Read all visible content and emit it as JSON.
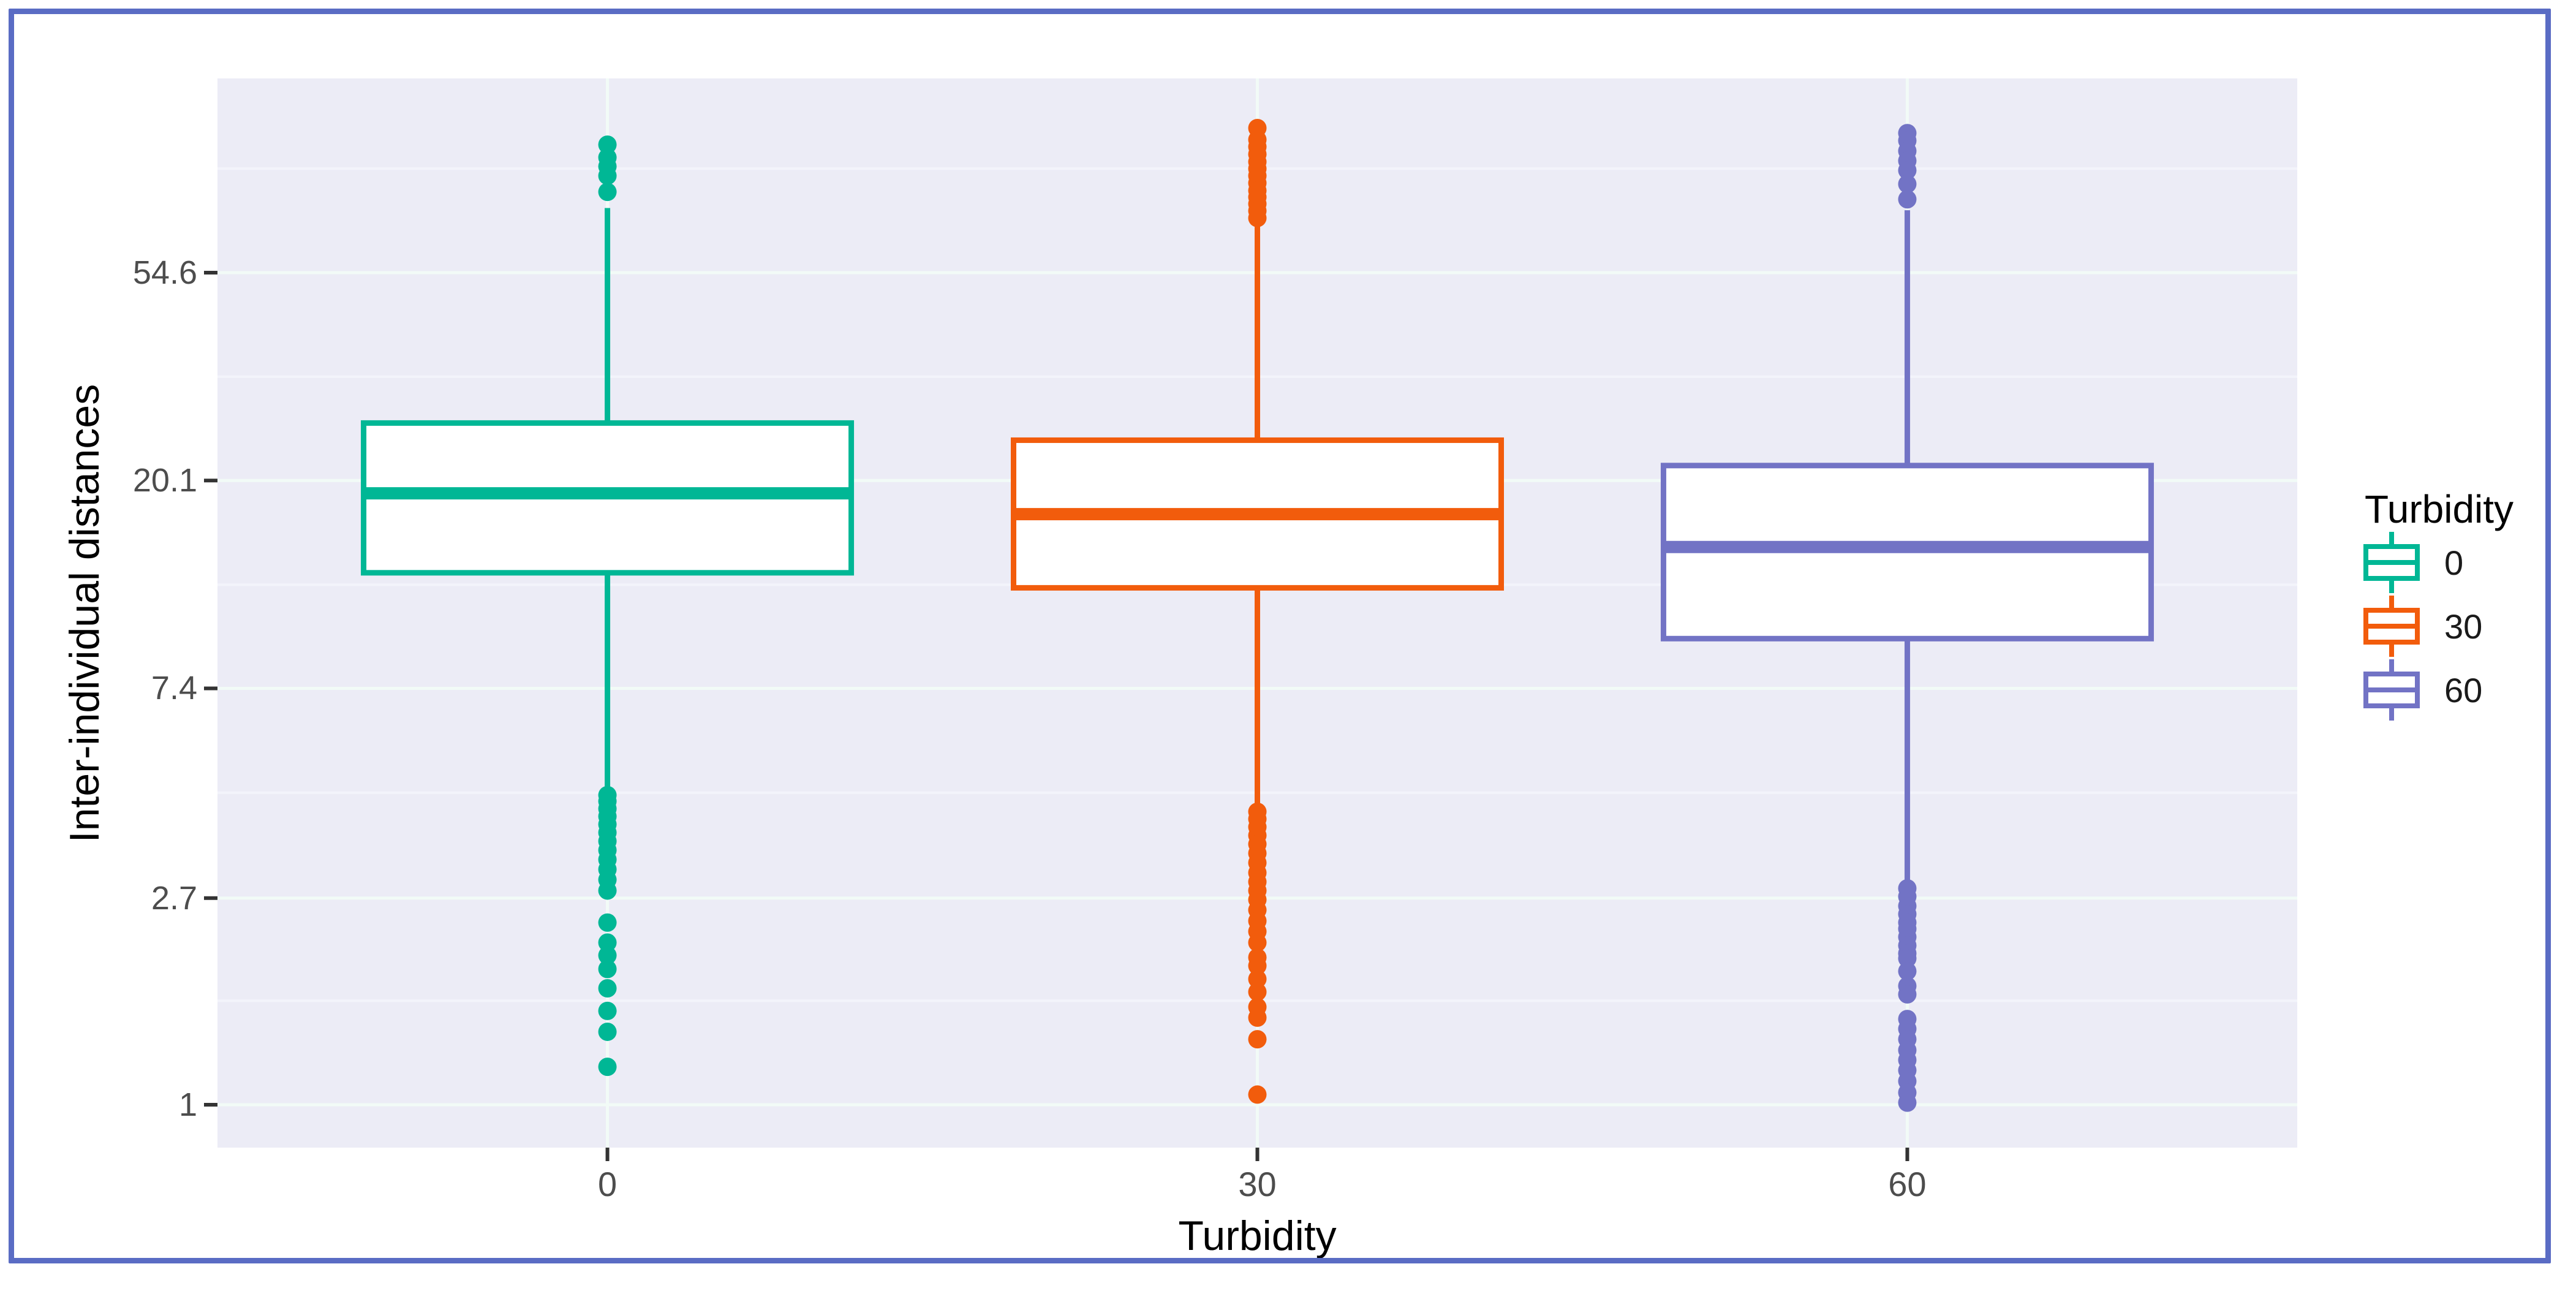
{
  "chart_data": {
    "type": "boxplot",
    "title": "",
    "xlabel": "Turbidity",
    "ylabel": "Inter-individual distances",
    "x_categories": [
      "0",
      "30",
      "60"
    ],
    "y_scale": "ln",
    "y_ticks": [
      1,
      2.7,
      7.4,
      20.1,
      54.6
    ],
    "y_tick_labels": [
      "1",
      "2.7",
      "7.4",
      "20.1",
      "54.6"
    ],
    "ylim": [
      0.81,
      139
    ],
    "grid": "on",
    "panel_bg": "#ECECF6",
    "major_grid_color": "#F2FBF7",
    "minor_grid_color": "#F3F4FB",
    "tick_color": "#333333",
    "legend": {
      "title": "Turbidity",
      "position": "right",
      "entries": [
        {
          "label": "0",
          "color": "#00B795"
        },
        {
          "label": "30",
          "color": "#F25C0C"
        },
        {
          "label": "60",
          "color": "#7273C5"
        }
      ]
    },
    "series": [
      {
        "name": "0",
        "color": "#00B795",
        "q1": 12.9,
        "median": 18.9,
        "q3": 26.5,
        "whisker_low": 4.45,
        "whisker_high": 74.5,
        "outliers_high": [
          101,
          95,
          91,
          87,
          80.5
        ],
        "outliers_low": [
          4.43,
          4.3,
          4.15,
          4.0,
          3.85,
          3.7,
          3.55,
          3.4,
          3.25,
          3.1,
          2.95,
          2.8,
          2.4,
          2.18,
          2.05,
          1.92,
          1.75,
          1.57,
          1.42,
          1.2
        ]
      },
      {
        "name": "30",
        "color": "#F25C0C",
        "q1": 12.0,
        "median": 17.1,
        "q3": 24.4,
        "whisker_low": 4.1,
        "whisker_high": 70,
        "outliers_high": [
          109.4,
          103.5,
          100,
          96.5,
          93,
          90,
          87,
          84,
          81,
          78.5,
          76,
          73.5,
          71
        ],
        "outliers_low": [
          4.09,
          3.95,
          3.8,
          3.65,
          3.5,
          3.35,
          3.2,
          3.05,
          2.92,
          2.8,
          2.68,
          2.55,
          2.42,
          2.3,
          2.18,
          2.03,
          1.95,
          1.83,
          1.72,
          1.6,
          1.52,
          1.37,
          1.05
        ]
      },
      {
        "name": "60",
        "color": "#7273C5",
        "q1": 9.4,
        "median": 14.6,
        "q3": 21.6,
        "whisker_low": 2.85,
        "whisker_high": 73.7,
        "outliers_high": [
          106.8,
          103,
          98,
          93.5,
          89.3,
          83.6,
          77.7
        ],
        "outliers_low": [
          2.83,
          2.72,
          2.6,
          2.5,
          2.4,
          2.33,
          2.24,
          2.15,
          2.07,
          2.02,
          1.9,
          1.77,
          1.7,
          1.51,
          1.44,
          1.37,
          1.3,
          1.24,
          1.18,
          1.12,
          1.06,
          1.01
        ]
      }
    ]
  },
  "ui": {
    "frame_color": "#5A6CC4",
    "x_title": "Turbidity",
    "y_title": "Inter-individual distances",
    "legend_title": "Turbidity"
  }
}
